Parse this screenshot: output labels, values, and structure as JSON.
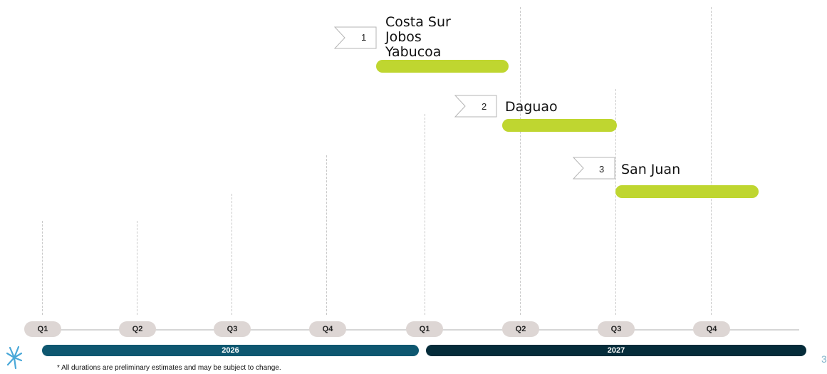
{
  "timeline": {
    "quarters": [
      "Q1",
      "Q2",
      "Q3",
      "Q4",
      "Q1",
      "Q2",
      "Q3",
      "Q4"
    ],
    "years": [
      {
        "label": "2026",
        "color": "#0e5770"
      },
      {
        "label": "2027",
        "color": "#052c3a"
      }
    ]
  },
  "phases": [
    {
      "number": "1",
      "lines": [
        "Costa Sur",
        "Jobos",
        "Yabucoa"
      ]
    },
    {
      "number": "2",
      "lines": [
        "Daguao"
      ]
    },
    {
      "number": "3",
      "lines": [
        "San Juan"
      ]
    }
  ],
  "colors": {
    "bar": "#bfd630",
    "pill": "#ddd6d4",
    "logo": "#4aa8d8",
    "page_number": "#7fb2c9"
  },
  "footnote": "* All durations are preliminary estimates and may be subject to change.",
  "page_number": "3",
  "logo_icon": "starburst-logo-icon"
}
